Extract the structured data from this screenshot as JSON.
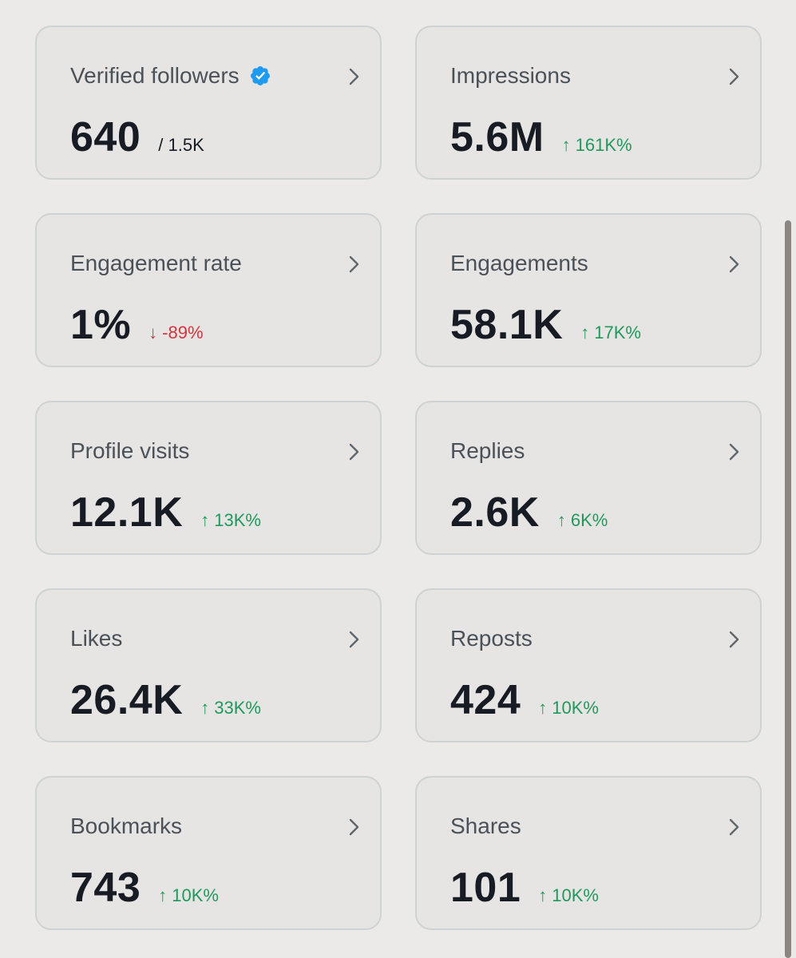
{
  "colors": {
    "background": "#ebeae8",
    "card_background": "#e6e5e3",
    "card_border": "#cfd2d3",
    "title": "#4a5159",
    "value": "#161b24",
    "delta_up": "#1f9a5c",
    "delta_down": "#d4343f",
    "verified_badge": "#1d9bf0",
    "scrollbar": "#8c8580"
  },
  "icons": {
    "chevron": "chevron-right-icon",
    "verified": "verified-badge-icon",
    "up": "arrow-up-icon",
    "down": "arrow-down-icon"
  },
  "metrics": {
    "verified_followers": {
      "title": "Verified followers",
      "value": "640",
      "total": "/ 1.5K"
    },
    "impressions": {
      "title": "Impressions",
      "value": "5.6M",
      "arrow": "↑",
      "change": "161K%"
    },
    "engagement_rate": {
      "title": "Engagement rate",
      "value": "1%",
      "arrow": "↓",
      "change": "-89%"
    },
    "engagements": {
      "title": "Engagements",
      "value": "58.1K",
      "arrow": "↑",
      "change": "17K%"
    },
    "profile_visits": {
      "title": "Profile visits",
      "value": "12.1K",
      "arrow": "↑",
      "change": "13K%"
    },
    "replies": {
      "title": "Replies",
      "value": "2.6K",
      "arrow": "↑",
      "change": "6K%"
    },
    "likes": {
      "title": "Likes",
      "value": "26.4K",
      "arrow": "↑",
      "change": "33K%"
    },
    "reposts": {
      "title": "Reposts",
      "value": "424",
      "arrow": "↑",
      "change": "10K%"
    },
    "bookmarks": {
      "title": "Bookmarks",
      "value": "743",
      "arrow": "↑",
      "change": "10K%"
    },
    "shares": {
      "title": "Shares",
      "value": "101",
      "arrow": "↑",
      "change": "10K%"
    }
  }
}
